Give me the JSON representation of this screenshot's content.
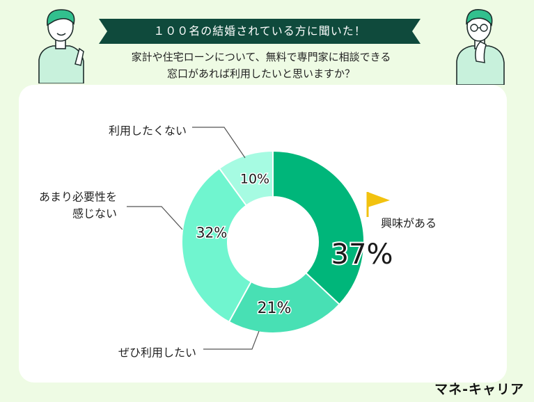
{
  "header": {
    "banner_title": "１００名の結婚されている方に聞いた！",
    "question_line1": "家計や住宅ローンについて、無料で専門家に相談できる",
    "question_line2": "窓口があれば利用したいと思いますか？"
  },
  "brand": {
    "name": "マネ-キャリア"
  },
  "colors": {
    "banner": "#0f4a3c",
    "interested": "#00b67a",
    "want_to_use": "#48e0b4",
    "not_needed": "#70f5cf",
    "dont_want": "#a6fbe2",
    "flag": "#f2c20f",
    "background": "#eefbe4"
  },
  "chart_data": {
    "type": "pie",
    "donut": true,
    "title": "",
    "categories": [
      "興味がある",
      "ぜひ利用したい",
      "あまり必要性を感じない",
      "利用したくない"
    ],
    "label_lines": [
      [
        "興味がある"
      ],
      [
        "ぜひ利用したい"
      ],
      [
        "あまり必要性を",
        "感じない"
      ],
      [
        "利用したくない"
      ]
    ],
    "values": [
      37,
      21,
      32,
      10
    ],
    "value_labels": [
      "37%",
      "21%",
      "32%",
      "10%"
    ],
    "unit": "%"
  }
}
